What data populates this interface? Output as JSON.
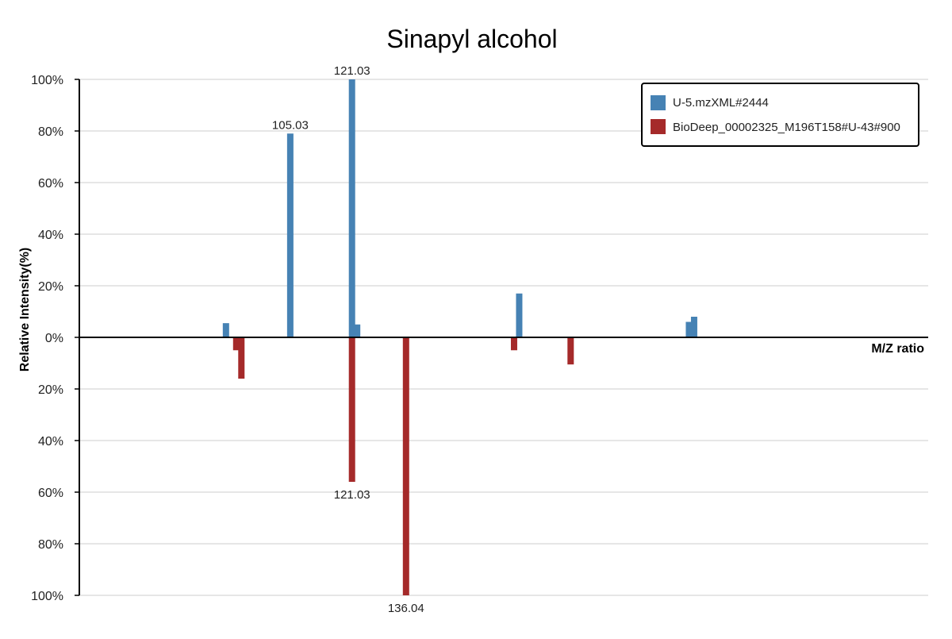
{
  "chart_data": {
    "type": "bar",
    "title": "Sinapyl alcohol",
    "xlabel": "M/Z ratio",
    "ylabel": "Relative Intensity(%)",
    "ylim": [
      -100,
      100
    ],
    "y_ticks": [
      100,
      80,
      60,
      40,
      20,
      0,
      -20,
      -40,
      -60,
      -80,
      -100
    ],
    "y_tick_labels": [
      "100%",
      "80%",
      "60%",
      "40%",
      "20%",
      "0%",
      "20%",
      "40%",
      "60%",
      "80%",
      "100%"
    ],
    "xlim": [
      50,
      215
    ],
    "grid": true,
    "legend_position": "top-right",
    "series": [
      {
        "name": "U-5.mzXML#2444",
        "color": "#4682b4",
        "direction": "up",
        "peaks": [
          {
            "mz": 78.5,
            "intensity": 5.5,
            "label": ""
          },
          {
            "mz": 91.0,
            "intensity": 79.0,
            "label": "105.03"
          },
          {
            "mz": 103.0,
            "intensity": 100.0,
            "label": "121.03"
          },
          {
            "mz": 104.0,
            "intensity": 5.0,
            "label": ""
          },
          {
            "mz": 135.5,
            "intensity": 17.0,
            "label": ""
          },
          {
            "mz": 168.5,
            "intensity": 6.0,
            "label": ""
          },
          {
            "mz": 169.5,
            "intensity": 8.0,
            "label": ""
          }
        ]
      },
      {
        "name": "BioDeep_00002325_M196T158#U-43#900",
        "color": "#a52a2a",
        "direction": "down",
        "peaks": [
          {
            "mz": 80.5,
            "intensity": 5.0,
            "label": ""
          },
          {
            "mz": 81.5,
            "intensity": 16.0,
            "label": ""
          },
          {
            "mz": 103.0,
            "intensity": 56.0,
            "label": "121.03"
          },
          {
            "mz": 113.5,
            "intensity": 100.0,
            "label": "136.04"
          },
          {
            "mz": 134.5,
            "intensity": 5.0,
            "label": ""
          },
          {
            "mz": 145.5,
            "intensity": 10.5,
            "label": ""
          }
        ]
      }
    ]
  }
}
